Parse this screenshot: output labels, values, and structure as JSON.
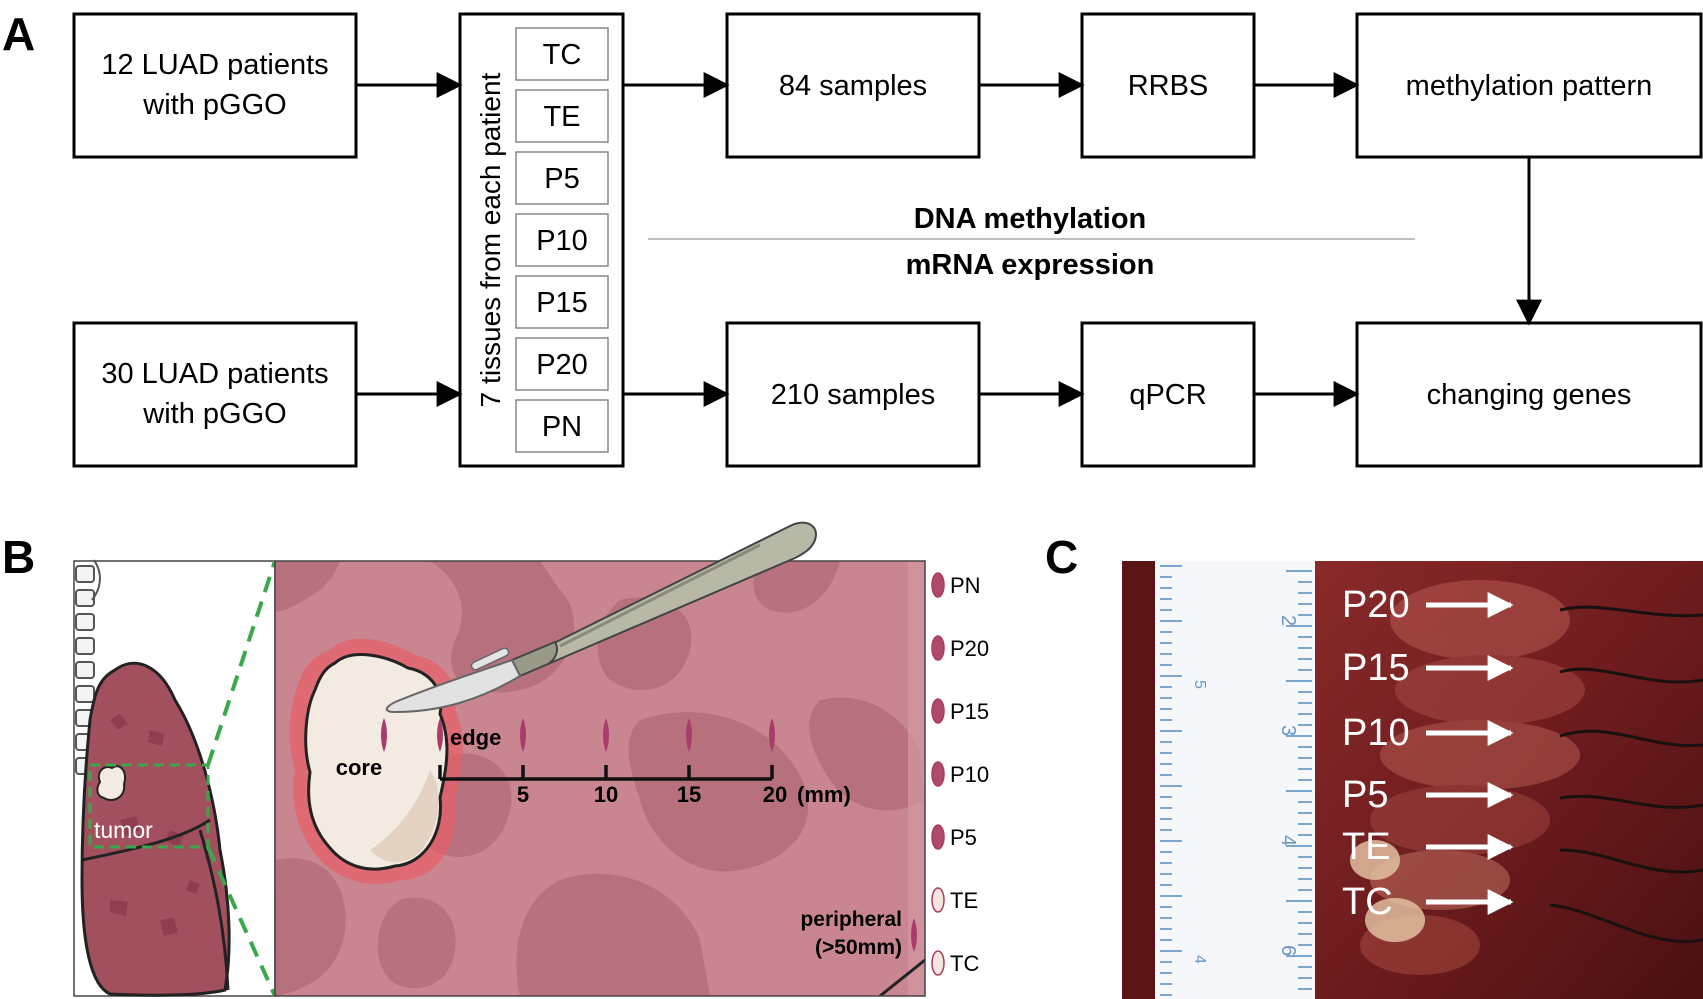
{
  "panels": {
    "a": "A",
    "b": "B",
    "c": "C"
  },
  "flow": {
    "patients_top": [
      "12 LUAD patients",
      "with pGGO"
    ],
    "patients_bottom": [
      "30 LUAD patients",
      "with pGGO"
    ],
    "tissues_label": "7 tissues from each patient",
    "tissues": [
      "TC",
      "TE",
      "P5",
      "P10",
      "P15",
      "P20",
      "PN"
    ],
    "samples_top": "84 samples",
    "samples_bottom": "210 samples",
    "method_top": "RRBS",
    "method_bottom": "qPCR",
    "result_top": "methylation pattern",
    "result_bottom": "changing genes",
    "divider_top": "DNA methylation",
    "divider_bottom": "mRNA expression"
  },
  "panel_b": {
    "tumor_label": "tumor",
    "core_label": "core",
    "edge_label": "edge",
    "scale_ticks": [
      "5",
      "10",
      "15",
      "20"
    ],
    "scale_unit": "(mm)",
    "peripheral": [
      "peripheral",
      "(>50mm)"
    ],
    "legend": [
      {
        "label": "PN",
        "color": "#b04a6a"
      },
      {
        "label": "P20",
        "color": "#b04a6a"
      },
      {
        "label": "P15",
        "color": "#b04a6a"
      },
      {
        "label": "P10",
        "color": "#b04a6a"
      },
      {
        "label": "P5",
        "color": "#b04a6a"
      },
      {
        "label": "TE",
        "color": "#f3e6e0"
      },
      {
        "label": "TC",
        "color": "#f3e6e0"
      }
    ]
  },
  "panel_c": {
    "labels": [
      "P20",
      "P15",
      "P10",
      "P5",
      "TE",
      "TC"
    ],
    "ruler_numbers": [
      "2",
      "5",
      "3",
      "4",
      "6",
      "4"
    ]
  },
  "colors": {
    "tissue": "#c98690",
    "tissue_dark": "#9e5a66",
    "lung": "#a2505e",
    "blade": "#b8b8a6",
    "tumor": "#f3ebe1"
  }
}
